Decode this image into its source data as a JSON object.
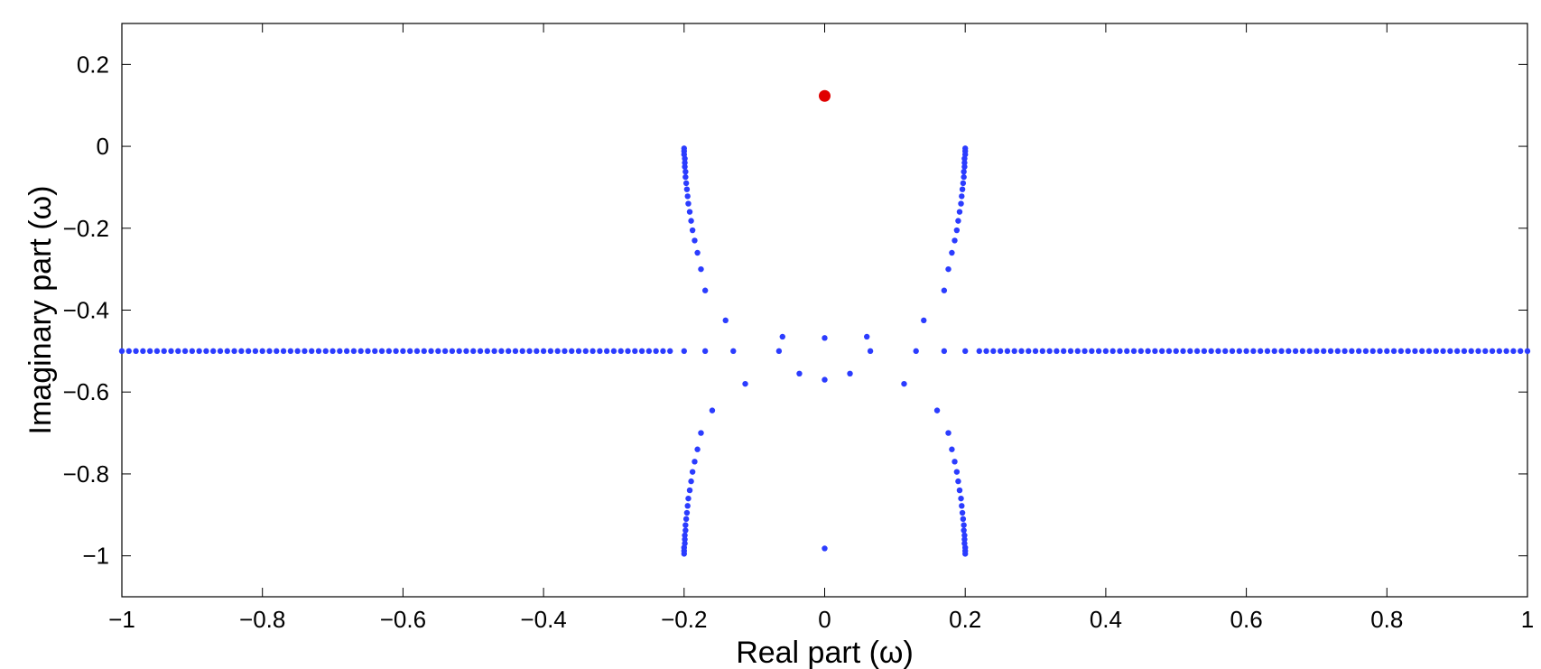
{
  "chart_data": {
    "type": "scatter",
    "title": "",
    "xlabel": "Real part (ω)",
    "ylabel": "Imaginary part (ω)",
    "xlim": [
      -1,
      1
    ],
    "ylim": [
      -1.1,
      0.3
    ],
    "grid": false,
    "x_ticks": [
      -1,
      -0.8,
      -0.6,
      -0.4,
      -0.2,
      0,
      0.2,
      0.4,
      0.6,
      0.8,
      1
    ],
    "x_tick_labels": [
      "−1",
      "−0.8",
      "−0.6",
      "−0.4",
      "−0.2",
      "0",
      "0.2",
      "0.4",
      "0.6",
      "0.8",
      "1"
    ],
    "y_ticks": [
      -1,
      -0.8,
      -0.6,
      -0.4,
      -0.2,
      0,
      0.2
    ],
    "y_tick_labels": [
      "−1",
      "−0.8",
      "−0.6",
      "−0.4",
      "−0.2",
      "0",
      "0.2"
    ],
    "series": [
      {
        "color": "#2b3cff",
        "marker": "dot-small",
        "points": [
          [
            -1.0,
            -0.5
          ],
          [
            -0.99,
            -0.5
          ],
          [
            -0.98,
            -0.5
          ],
          [
            -0.97,
            -0.5
          ],
          [
            -0.96,
            -0.5
          ],
          [
            -0.95,
            -0.5
          ],
          [
            -0.94,
            -0.5
          ],
          [
            -0.93,
            -0.5
          ],
          [
            -0.92,
            -0.5
          ],
          [
            -0.91,
            -0.5
          ],
          [
            -0.9,
            -0.5
          ],
          [
            -0.89,
            -0.5
          ],
          [
            -0.88,
            -0.5
          ],
          [
            -0.87,
            -0.5
          ],
          [
            -0.86,
            -0.5
          ],
          [
            -0.85,
            -0.5
          ],
          [
            -0.84,
            -0.5
          ],
          [
            -0.83,
            -0.5
          ],
          [
            -0.82,
            -0.5
          ],
          [
            -0.81,
            -0.5
          ],
          [
            -0.8,
            -0.5
          ],
          [
            -0.79,
            -0.5
          ],
          [
            -0.78,
            -0.5
          ],
          [
            -0.77,
            -0.5
          ],
          [
            -0.76,
            -0.5
          ],
          [
            -0.75,
            -0.5
          ],
          [
            -0.74,
            -0.5
          ],
          [
            -0.73,
            -0.5
          ],
          [
            -0.72,
            -0.5
          ],
          [
            -0.71,
            -0.5
          ],
          [
            -0.7,
            -0.5
          ],
          [
            -0.69,
            -0.5
          ],
          [
            -0.68,
            -0.5
          ],
          [
            -0.67,
            -0.5
          ],
          [
            -0.66,
            -0.5
          ],
          [
            -0.65,
            -0.5
          ],
          [
            -0.64,
            -0.5
          ],
          [
            -0.63,
            -0.5
          ],
          [
            -0.62,
            -0.5
          ],
          [
            -0.61,
            -0.5
          ],
          [
            -0.6,
            -0.5
          ],
          [
            -0.59,
            -0.5
          ],
          [
            -0.58,
            -0.5
          ],
          [
            -0.57,
            -0.5
          ],
          [
            -0.56,
            -0.5
          ],
          [
            -0.55,
            -0.5
          ],
          [
            -0.54,
            -0.5
          ],
          [
            -0.53,
            -0.5
          ],
          [
            -0.52,
            -0.5
          ],
          [
            -0.51,
            -0.5
          ],
          [
            -0.5,
            -0.5
          ],
          [
            -0.49,
            -0.5
          ],
          [
            -0.48,
            -0.5
          ],
          [
            -0.47,
            -0.5
          ],
          [
            -0.46,
            -0.5
          ],
          [
            -0.45,
            -0.5
          ],
          [
            -0.44,
            -0.5
          ],
          [
            -0.43,
            -0.5
          ],
          [
            -0.42,
            -0.5
          ],
          [
            -0.41,
            -0.5
          ],
          [
            -0.4,
            -0.5
          ],
          [
            -0.39,
            -0.5
          ],
          [
            -0.38,
            -0.5
          ],
          [
            -0.37,
            -0.5
          ],
          [
            -0.36,
            -0.5
          ],
          [
            -0.35,
            -0.5
          ],
          [
            -0.34,
            -0.5
          ],
          [
            -0.33,
            -0.5
          ],
          [
            -0.32,
            -0.5
          ],
          [
            -0.31,
            -0.5
          ],
          [
            -0.3,
            -0.5
          ],
          [
            -0.29,
            -0.5
          ],
          [
            -0.28,
            -0.5
          ],
          [
            -0.27,
            -0.5
          ],
          [
            -0.26,
            -0.5
          ],
          [
            -0.25,
            -0.5
          ],
          [
            -0.24,
            -0.5
          ],
          [
            -0.23,
            -0.5
          ],
          [
            -0.22,
            -0.5
          ],
          [
            -0.2,
            -0.5
          ],
          [
            -0.17,
            -0.5
          ],
          [
            -0.13,
            -0.5
          ],
          [
            -0.065,
            -0.5
          ],
          [
            -0.06,
            -0.465
          ],
          [
            -0.036,
            -0.555
          ],
          [
            0.0,
            -0.468
          ],
          [
            0.0,
            -0.57
          ],
          [
            0.036,
            -0.555
          ],
          [
            0.06,
            -0.465
          ],
          [
            0.065,
            -0.5
          ],
          [
            0.13,
            -0.5
          ],
          [
            0.17,
            -0.5
          ],
          [
            0.2,
            -0.5
          ],
          [
            0.22,
            -0.5
          ],
          [
            0.23,
            -0.5
          ],
          [
            0.24,
            -0.5
          ],
          [
            0.25,
            -0.5
          ],
          [
            0.26,
            -0.5
          ],
          [
            0.27,
            -0.5
          ],
          [
            0.28,
            -0.5
          ],
          [
            0.29,
            -0.5
          ],
          [
            0.3,
            -0.5
          ],
          [
            0.31,
            -0.5
          ],
          [
            0.32,
            -0.5
          ],
          [
            0.33,
            -0.5
          ],
          [
            0.34,
            -0.5
          ],
          [
            0.35,
            -0.5
          ],
          [
            0.36,
            -0.5
          ],
          [
            0.37,
            -0.5
          ],
          [
            0.38,
            -0.5
          ],
          [
            0.39,
            -0.5
          ],
          [
            0.4,
            -0.5
          ],
          [
            0.41,
            -0.5
          ],
          [
            0.42,
            -0.5
          ],
          [
            0.43,
            -0.5
          ],
          [
            0.44,
            -0.5
          ],
          [
            0.45,
            -0.5
          ],
          [
            0.46,
            -0.5
          ],
          [
            0.47,
            -0.5
          ],
          [
            0.48,
            -0.5
          ],
          [
            0.49,
            -0.5
          ],
          [
            0.5,
            -0.5
          ],
          [
            0.51,
            -0.5
          ],
          [
            0.52,
            -0.5
          ],
          [
            0.53,
            -0.5
          ],
          [
            0.54,
            -0.5
          ],
          [
            0.55,
            -0.5
          ],
          [
            0.56,
            -0.5
          ],
          [
            0.57,
            -0.5
          ],
          [
            0.58,
            -0.5
          ],
          [
            0.59,
            -0.5
          ],
          [
            0.6,
            -0.5
          ],
          [
            0.61,
            -0.5
          ],
          [
            0.62,
            -0.5
          ],
          [
            0.63,
            -0.5
          ],
          [
            0.64,
            -0.5
          ],
          [
            0.65,
            -0.5
          ],
          [
            0.66,
            -0.5
          ],
          [
            0.67,
            -0.5
          ],
          [
            0.68,
            -0.5
          ],
          [
            0.69,
            -0.5
          ],
          [
            0.7,
            -0.5
          ],
          [
            0.71,
            -0.5
          ],
          [
            0.72,
            -0.5
          ],
          [
            0.73,
            -0.5
          ],
          [
            0.74,
            -0.5
          ],
          [
            0.75,
            -0.5
          ],
          [
            0.76,
            -0.5
          ],
          [
            0.77,
            -0.5
          ],
          [
            0.78,
            -0.5
          ],
          [
            0.79,
            -0.5
          ],
          [
            0.8,
            -0.5
          ],
          [
            0.81,
            -0.5
          ],
          [
            0.82,
            -0.5
          ],
          [
            0.83,
            -0.5
          ],
          [
            0.84,
            -0.5
          ],
          [
            0.85,
            -0.5
          ],
          [
            0.86,
            -0.5
          ],
          [
            0.87,
            -0.5
          ],
          [
            0.88,
            -0.5
          ],
          [
            0.89,
            -0.5
          ],
          [
            0.9,
            -0.5
          ],
          [
            0.91,
            -0.5
          ],
          [
            0.92,
            -0.5
          ],
          [
            0.93,
            -0.5
          ],
          [
            0.94,
            -0.5
          ],
          [
            0.95,
            -0.5
          ],
          [
            0.96,
            -0.5
          ],
          [
            0.97,
            -0.5
          ],
          [
            0.98,
            -0.5
          ],
          [
            0.99,
            -0.5
          ],
          [
            1.0,
            -0.5
          ],
          [
            -0.2,
            -0.005
          ],
          [
            -0.2,
            -0.012
          ],
          [
            -0.2,
            -0.02
          ],
          [
            -0.199,
            -0.03
          ],
          [
            -0.199,
            -0.04
          ],
          [
            -0.199,
            -0.05
          ],
          [
            -0.198,
            -0.062
          ],
          [
            -0.198,
            -0.075
          ],
          [
            -0.197,
            -0.09
          ],
          [
            -0.196,
            -0.105
          ],
          [
            -0.195,
            -0.122
          ],
          [
            -0.194,
            -0.14
          ],
          [
            -0.192,
            -0.16
          ],
          [
            -0.19,
            -0.182
          ],
          [
            -0.188,
            -0.205
          ],
          [
            -0.185,
            -0.23
          ],
          [
            -0.181,
            -0.26
          ],
          [
            -0.176,
            -0.3
          ],
          [
            -0.17,
            -0.352
          ],
          [
            -0.141,
            -0.425
          ],
          [
            -0.2,
            -0.995
          ],
          [
            -0.2,
            -0.988
          ],
          [
            -0.2,
            -0.98
          ],
          [
            -0.199,
            -0.97
          ],
          [
            -0.199,
            -0.96
          ],
          [
            -0.199,
            -0.95
          ],
          [
            -0.198,
            -0.938
          ],
          [
            -0.198,
            -0.925
          ],
          [
            -0.197,
            -0.91
          ],
          [
            -0.196,
            -0.895
          ],
          [
            -0.195,
            -0.878
          ],
          [
            -0.194,
            -0.86
          ],
          [
            -0.192,
            -0.84
          ],
          [
            -0.19,
            -0.818
          ],
          [
            -0.188,
            -0.795
          ],
          [
            -0.185,
            -0.77
          ],
          [
            -0.181,
            -0.74
          ],
          [
            -0.176,
            -0.7
          ],
          [
            -0.16,
            -0.645
          ],
          [
            -0.113,
            -0.58
          ],
          [
            0.2,
            -0.005
          ],
          [
            0.2,
            -0.012
          ],
          [
            0.2,
            -0.02
          ],
          [
            0.199,
            -0.03
          ],
          [
            0.199,
            -0.04
          ],
          [
            0.199,
            -0.05
          ],
          [
            0.198,
            -0.062
          ],
          [
            0.198,
            -0.075
          ],
          [
            0.197,
            -0.09
          ],
          [
            0.196,
            -0.105
          ],
          [
            0.195,
            -0.122
          ],
          [
            0.194,
            -0.14
          ],
          [
            0.192,
            -0.16
          ],
          [
            0.19,
            -0.182
          ],
          [
            0.188,
            -0.205
          ],
          [
            0.185,
            -0.23
          ],
          [
            0.181,
            -0.26
          ],
          [
            0.176,
            -0.3
          ],
          [
            0.17,
            -0.352
          ],
          [
            0.141,
            -0.425
          ],
          [
            0.2,
            -0.995
          ],
          [
            0.2,
            -0.988
          ],
          [
            0.2,
            -0.98
          ],
          [
            0.199,
            -0.97
          ],
          [
            0.199,
            -0.96
          ],
          [
            0.199,
            -0.95
          ],
          [
            0.198,
            -0.938
          ],
          [
            0.198,
            -0.925
          ],
          [
            0.197,
            -0.91
          ],
          [
            0.196,
            -0.895
          ],
          [
            0.195,
            -0.878
          ],
          [
            0.194,
            -0.86
          ],
          [
            0.192,
            -0.84
          ],
          [
            0.19,
            -0.818
          ],
          [
            0.188,
            -0.795
          ],
          [
            0.185,
            -0.77
          ],
          [
            0.181,
            -0.74
          ],
          [
            0.176,
            -0.7
          ],
          [
            0.16,
            -0.645
          ],
          [
            0.113,
            -0.58
          ],
          [
            0.0,
            -0.982
          ]
        ]
      },
      {
        "color": "#e00000",
        "marker": "dot-large",
        "points": [
          [
            0.0,
            0.123
          ]
        ]
      }
    ]
  }
}
